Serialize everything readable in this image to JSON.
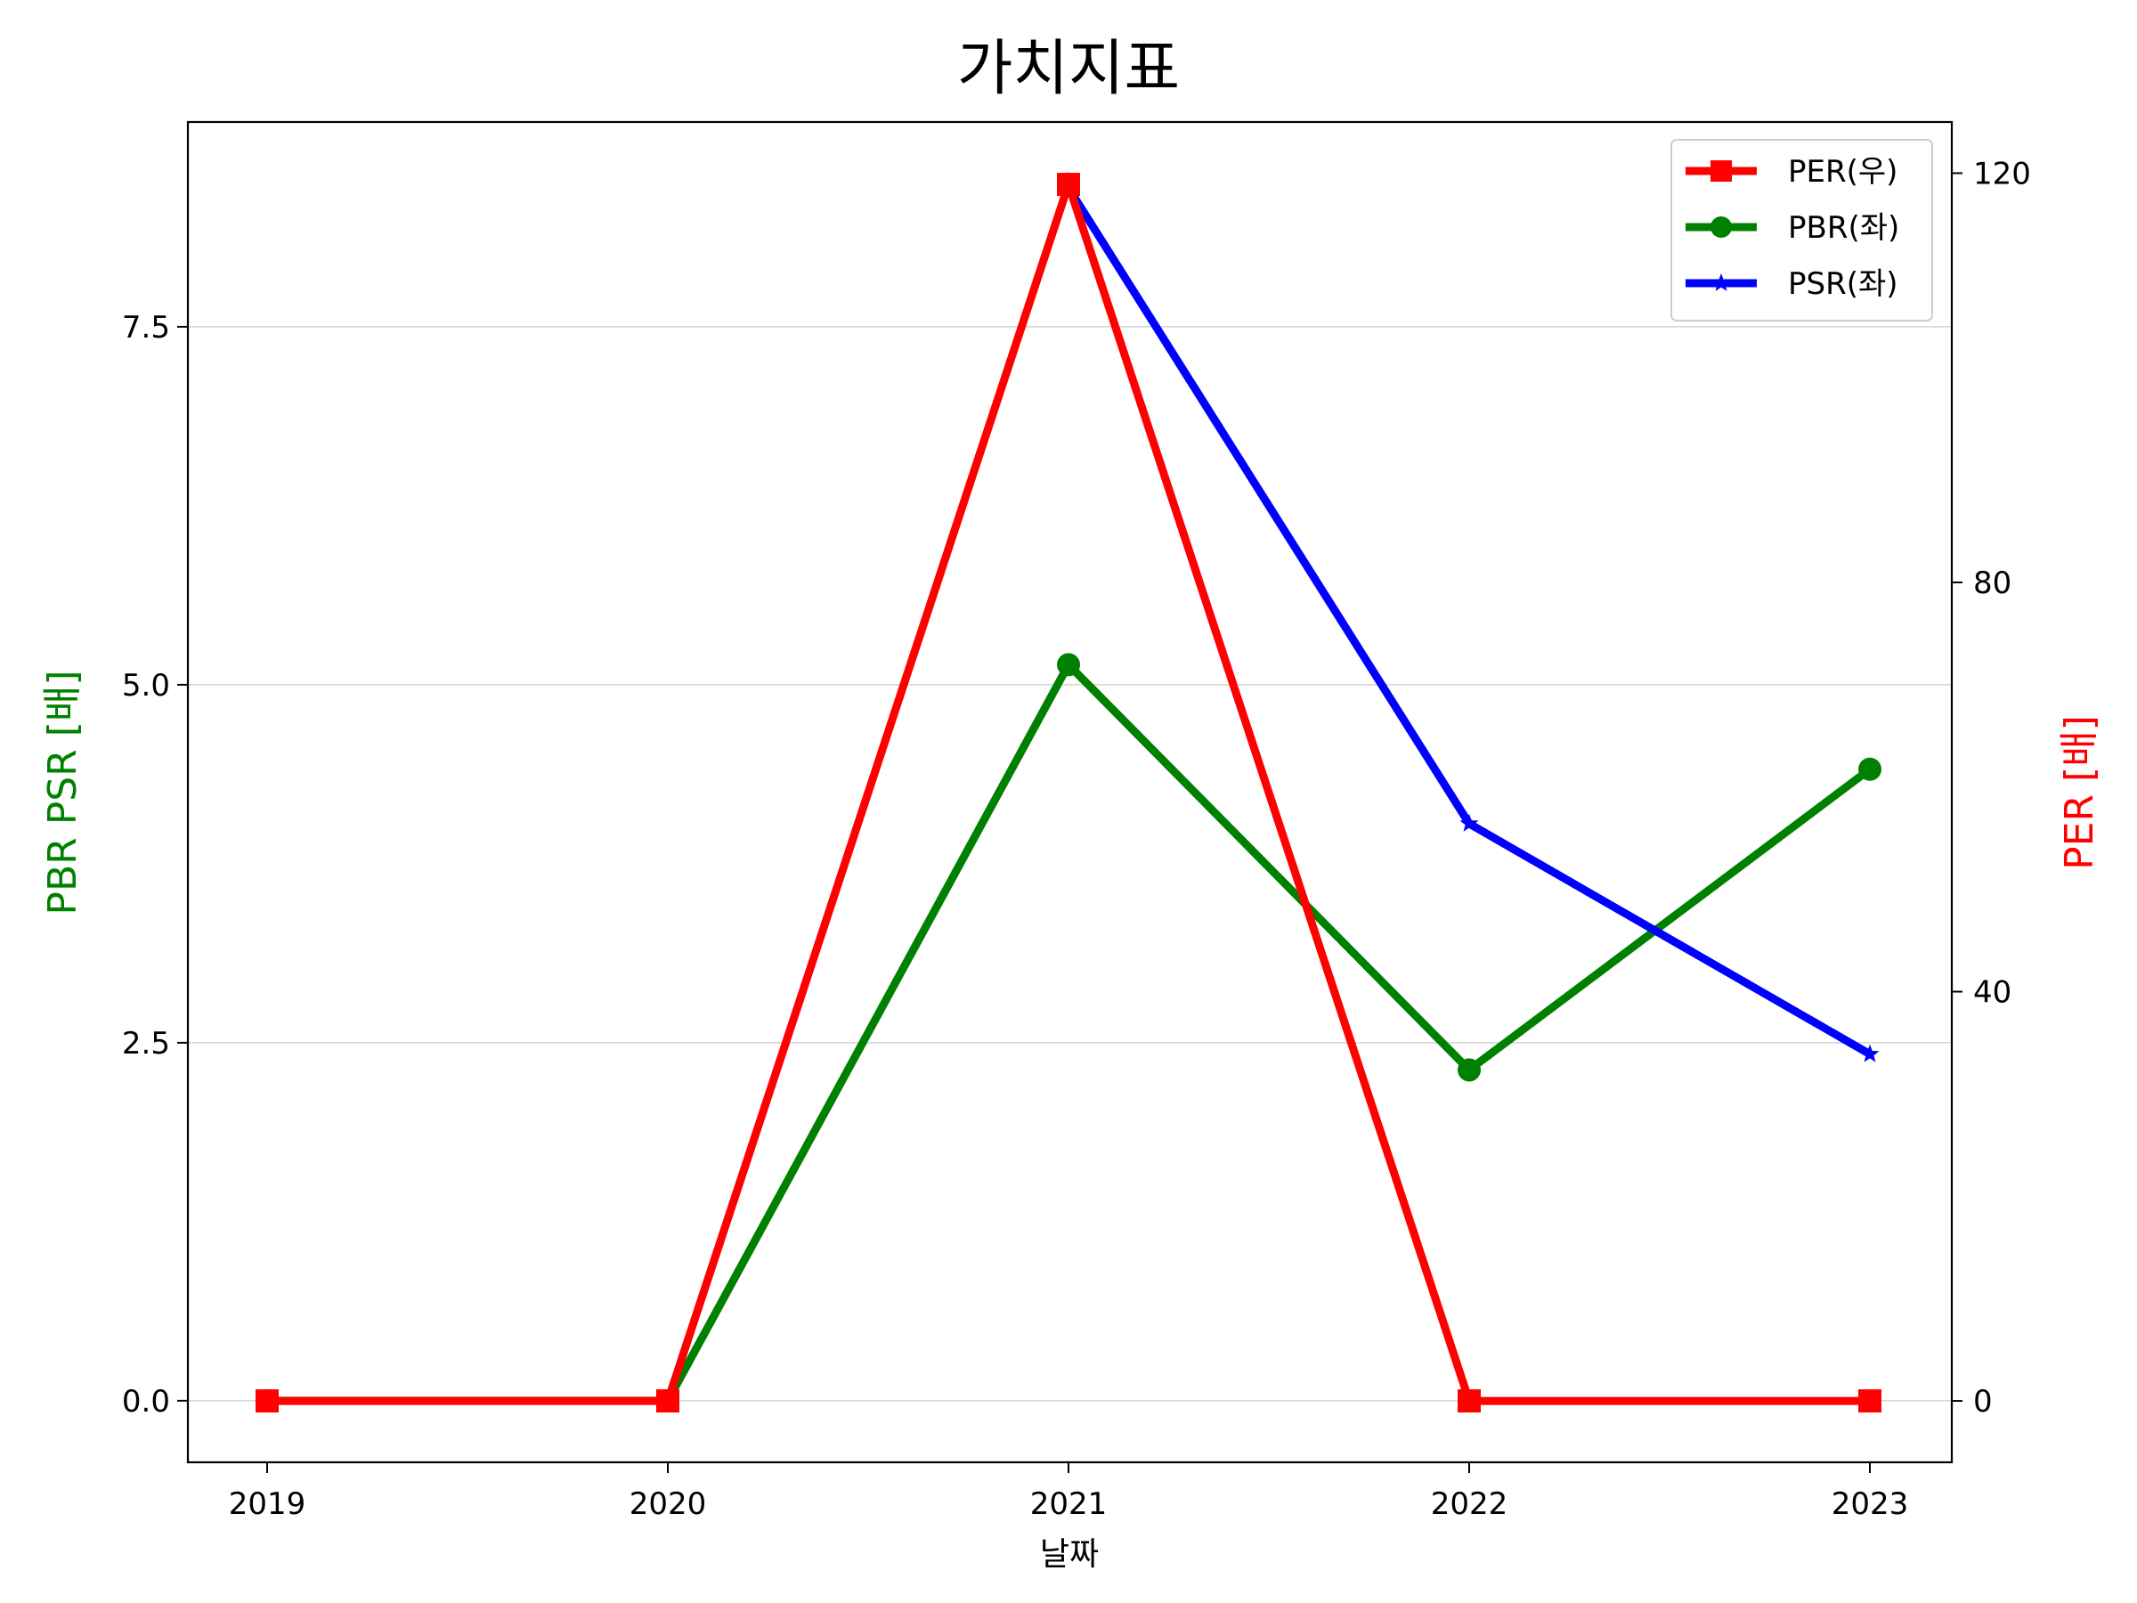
{
  "chart_data": {
    "type": "line",
    "title": "가치지표",
    "xlabel": "날짜",
    "ylabel_left": "PBR PSR [배]",
    "ylabel_right": "PER [배]",
    "categories": [
      "2019",
      "2020",
      "2021",
      "2022",
      "2023"
    ],
    "ylim_left": [
      -0.43,
      8.93
    ],
    "ylim_right": [
      -6.0,
      125.0
    ],
    "yticks_left": [
      "0.0",
      "2.5",
      "5.0",
      "7.5"
    ],
    "yticks_left_values": [
      0.0,
      2.5,
      5.0,
      7.5
    ],
    "yticks_right": [
      "0",
      "40",
      "80",
      "120"
    ],
    "yticks_right_values": [
      0,
      40,
      80,
      120
    ],
    "grid": "horizontal (left axis)",
    "legend_position": "top-right",
    "series": [
      {
        "name": "PER(우)",
        "axis": "right",
        "color": "#ff0000",
        "marker": "square",
        "values": [
          0,
          0,
          118.9,
          0,
          0
        ]
      },
      {
        "name": "PBR(좌)",
        "axis": "left",
        "color": "#008000",
        "marker": "circle",
        "values": [
          0,
          0,
          5.14,
          2.31,
          4.41
        ]
      },
      {
        "name": "PSR(좌)",
        "axis": "left",
        "color": "#0000ff",
        "marker": "star",
        "values": [
          null,
          null,
          8.47,
          4.03,
          2.42
        ]
      }
    ]
  },
  "colors": {
    "pbr_label": "#008000",
    "per_label": "#ff0000",
    "axis": "#000000",
    "grid": "#d3d3d3"
  }
}
